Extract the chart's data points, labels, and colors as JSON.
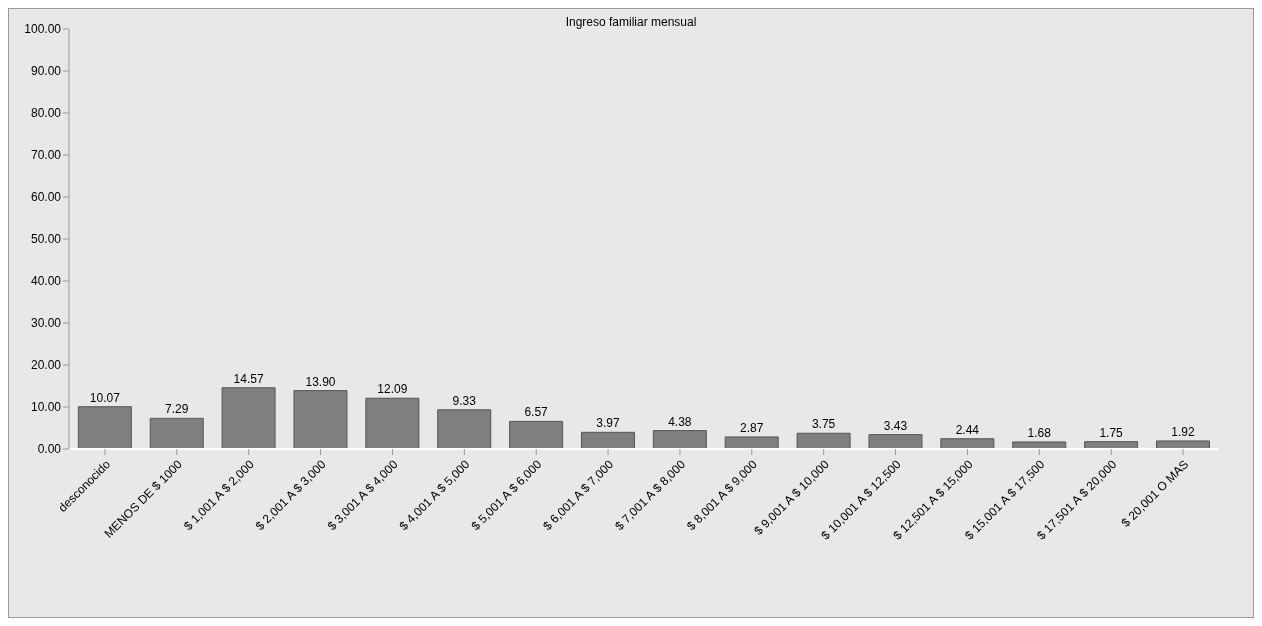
{
  "chart_data": {
    "type": "bar",
    "title": "Ingreso familiar mensual",
    "categories": [
      "desconocido",
      "MENOS DE $ 1000",
      "$ 1,001 A $ 2,000",
      "$ 2,001 A $ 3,000",
      "$ 3,001 A $ 4,000",
      "$ 4,001 A $ 5,000",
      "$ 5,001 A $ 6,000",
      "$ 6,001 A $ 7,000",
      "$ 7,001 A $ 8,000",
      "$ 8,001 A $ 9,000",
      "$ 9,001 A $ 10,000",
      "$ 10,001 A $ 12,500",
      "$ 12,501 A $ 15,000",
      "$ 15,001 A $ 17,500",
      "$ 17,501 A $ 20,000",
      "$ 20,001 O MAS"
    ],
    "values": [
      10.07,
      7.29,
      14.57,
      13.9,
      12.09,
      9.33,
      6.57,
      3.97,
      4.38,
      2.87,
      3.75,
      3.43,
      2.44,
      1.68,
      1.75,
      1.92
    ],
    "value_labels": [
      "10.07",
      "7.29",
      "14.57",
      "13.90",
      "12.09",
      "9.33",
      "6.57",
      "3.97",
      "4.38",
      "2.87",
      "3.75",
      "3.43",
      "2.44",
      "1.68",
      "1.75",
      "1.92"
    ],
    "color": "#7f7f7f",
    "ylim": [
      0,
      100
    ],
    "yticks": [
      {
        "value": 0,
        "label": "0.00"
      },
      {
        "value": 10,
        "label": "10.00"
      },
      {
        "value": 20,
        "label": "20.00"
      },
      {
        "value": 30,
        "label": "30.00"
      },
      {
        "value": 40,
        "label": "40.00"
      },
      {
        "value": 50,
        "label": "50.00"
      },
      {
        "value": 60,
        "label": "60.00"
      },
      {
        "value": 70,
        "label": "70.00"
      },
      {
        "value": 80,
        "label": "80.00"
      },
      {
        "value": 90,
        "label": "90.00"
      },
      {
        "value": 100,
        "label": "100.00"
      }
    ],
    "grid": false,
    "legend": false
  }
}
